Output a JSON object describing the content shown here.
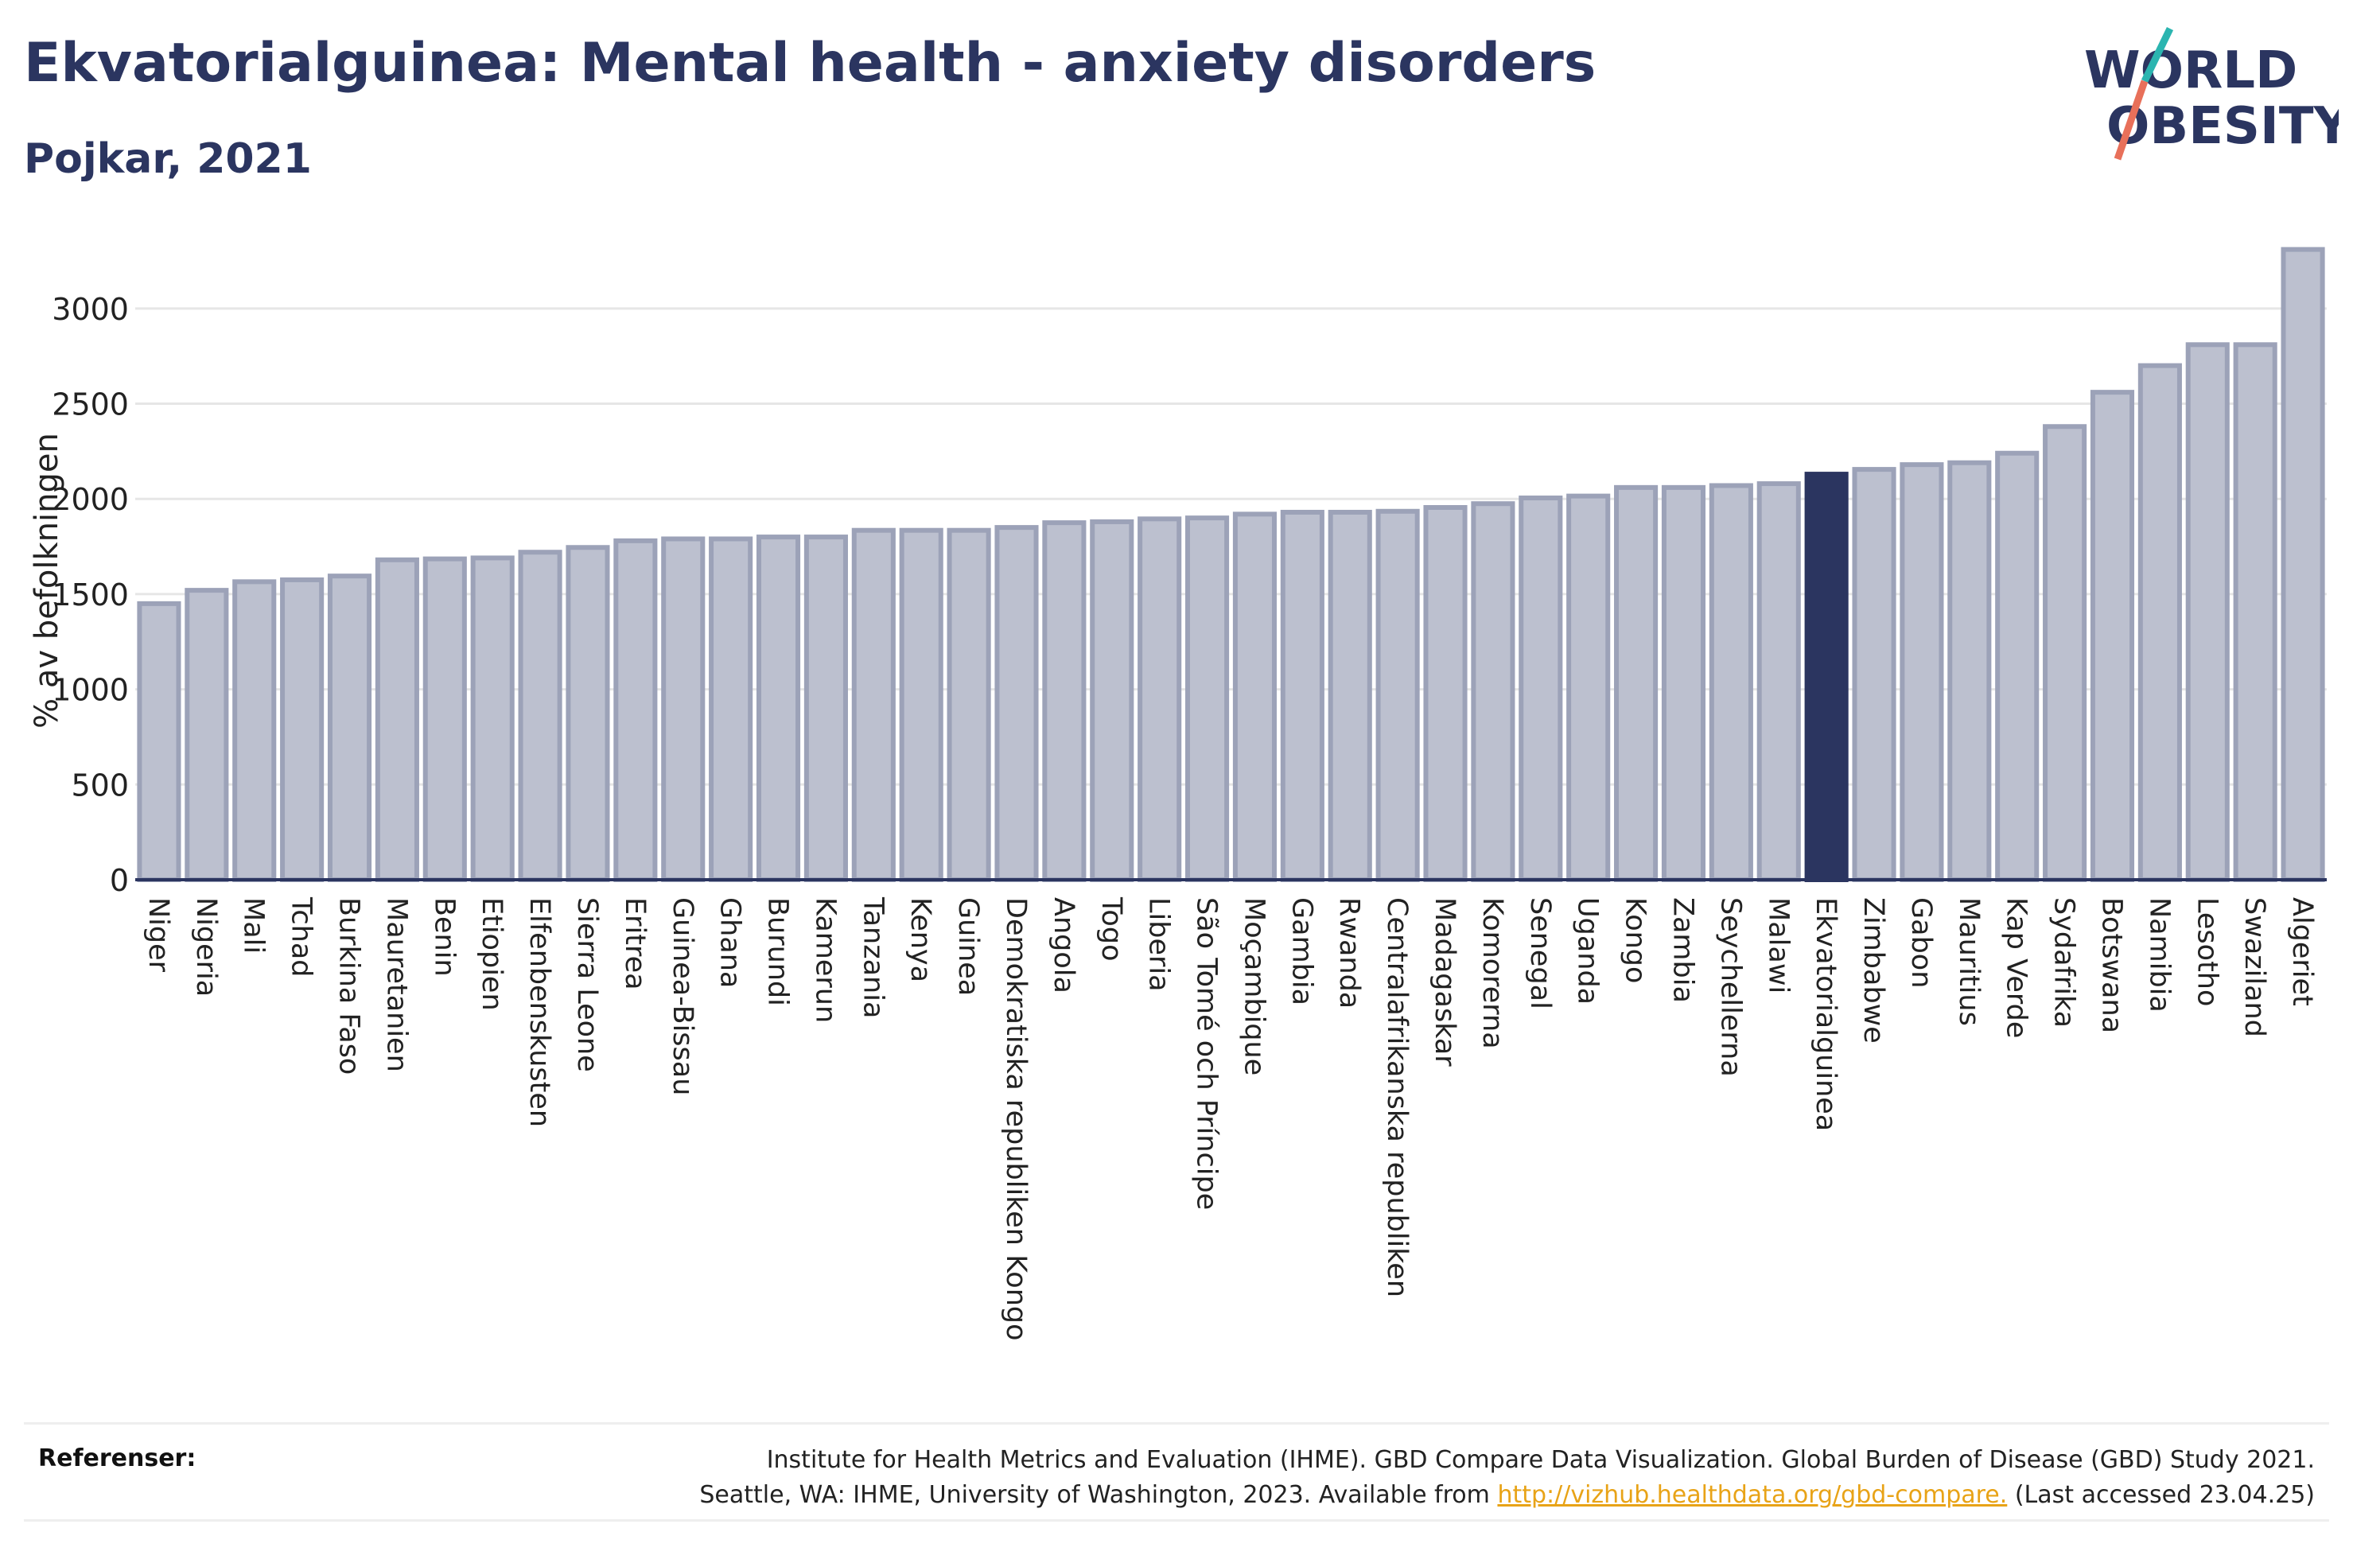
{
  "header": {
    "title": "Ekvatorialguinea: Mental health - anxiety disorders",
    "subtitle": "Pojkar, 2021"
  },
  "logo": {
    "line1": "WORLD",
    "line2": "OBESITY"
  },
  "references": {
    "label": "Referenser:",
    "line1": "Institute for Health Metrics and Evaluation (IHME). GBD Compare Data Visualization. Global Burden of Disease (GBD) Study 2021.",
    "line2_prefix": "Seattle, WA: IHME, University of Washington, 2023. Available from",
    "link": "http://vizhub.healthdata.org/gbd-compare.",
    "line2_suffix": "(Last accessed 23.04.25)"
  },
  "colors": {
    "bar": "#bcc0cf",
    "bar_edge": "#9ca2b8",
    "highlight": "#2b3560",
    "title": "#2b3560",
    "link": "#e8a317",
    "logo_teal": "#2bb5b0",
    "logo_coral": "#e8705a"
  },
  "chart_data": {
    "type": "bar",
    "ylabel": "% av befolkningen",
    "ylim": [
      0,
      3300
    ],
    "yticks": [
      0,
      500,
      1000,
      1500,
      2000,
      2500,
      3000
    ],
    "grid": true,
    "highlight": "Ekvatorialguinea",
    "categories": [
      "Niger",
      "Nigeria",
      "Mali",
      "Tchad",
      "Burkina Faso",
      "Mauretanien",
      "Benin",
      "Etiopien",
      "Elfenbenskusten",
      "Sierra Leone",
      "Eritrea",
      "Guinea-Bissau",
      "Ghana",
      "Burundi",
      "Kamerun",
      "Tanzania",
      "Kenya",
      "Guinea",
      "Demokratiska republiken Kongo",
      "Angola",
      "Togo",
      "Liberia",
      "São Tomé och Príncipe",
      "Moçambique",
      "Gambia",
      "Rwanda",
      "Centralafrikanska republiken",
      "Madagaskar",
      "Komorerna",
      "Senegal",
      "Uganda",
      "Kongo",
      "Zambia",
      "Seychellerna",
      "Malawi",
      "Ekvatorialguinea",
      "Zimbabwe",
      "Gabon",
      "Mauritius",
      "Kap Verde",
      "Sydafrika",
      "Botswana",
      "Namibia",
      "Lesotho",
      "Swaziland",
      "Algeriet"
    ],
    "values": [
      1450,
      1520,
      1565,
      1575,
      1595,
      1680,
      1685,
      1690,
      1720,
      1745,
      1780,
      1790,
      1790,
      1800,
      1800,
      1835,
      1835,
      1835,
      1850,
      1875,
      1880,
      1895,
      1900,
      1920,
      1930,
      1930,
      1935,
      1955,
      1975,
      2005,
      2015,
      2060,
      2060,
      2070,
      2080,
      2130,
      2155,
      2180,
      2190,
      2240,
      2380,
      2560,
      2700,
      2810,
      2810,
      3310
    ]
  }
}
